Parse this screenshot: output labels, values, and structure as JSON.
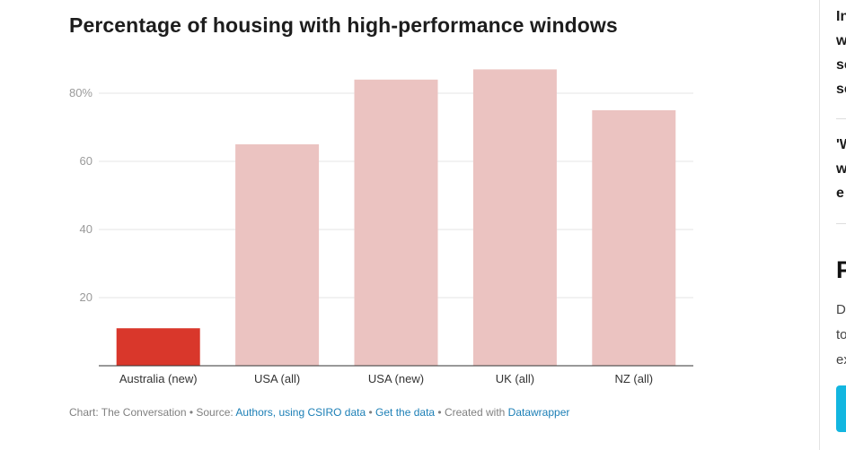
{
  "chart_data": {
    "type": "bar",
    "title": "Percentage of housing with high-performance windows",
    "categories": [
      "Australia (new)",
      "USA (all)",
      "USA (new)",
      "UK (all)",
      "NZ (all)"
    ],
    "values": [
      11,
      65,
      84,
      87,
      75
    ],
    "ylim": [
      0,
      90
    ],
    "yticks": [
      20,
      40,
      60,
      80
    ],
    "ytick_labels": [
      "20",
      "40",
      "60",
      "80%"
    ],
    "grid": true,
    "colors": [
      "#d9372b",
      "#ebc3c1",
      "#ebc3c1",
      "#ebc3c1",
      "#ebc3c1"
    ]
  },
  "footer": {
    "prefix": "Chart: The Conversation • Source: ",
    "source_link": "Authors, using CSIRO data",
    "sep1": " • ",
    "get_data_link": "Get the data",
    "sep2": " • Created with ",
    "tool_link": "Datawrapper"
  },
  "sidebar": {
    "item1_lines": [
      "In",
      "w",
      "se",
      "se"
    ],
    "item2_lines": [
      "'W",
      "w",
      "e"
    ],
    "heading": "P",
    "para_lines": [
      "D",
      "to",
      "ex"
    ]
  }
}
